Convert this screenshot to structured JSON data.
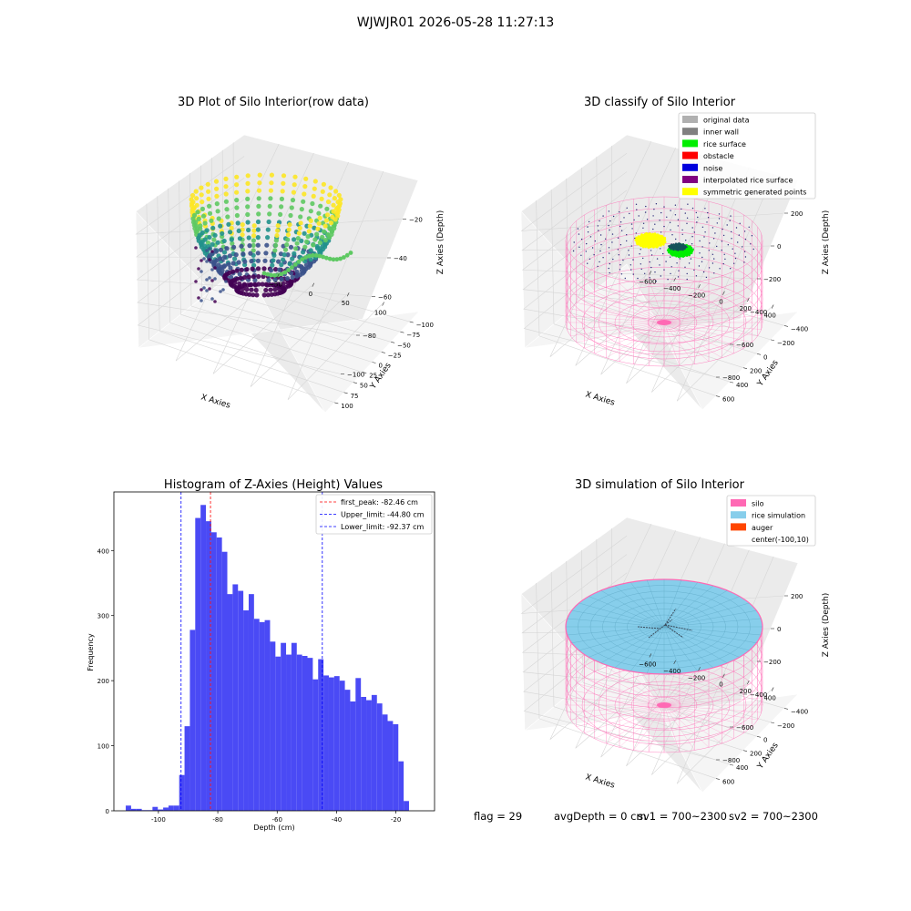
{
  "suptitle": "WJWJR01 2026-05-28 11:27:13",
  "footer": {
    "flag": "flag = 29",
    "avg_depth": "avgDepth = 0 cm",
    "sv1": "sv1 = 700~2300",
    "sv2": "sv2 = 700~2300"
  },
  "chart_data": [
    {
      "type": "scatter",
      "title": "3D Plot of Silo Interior(row data)",
      "xlabel": "X Axies",
      "ylabel": "Y Axies",
      "zlabel": "Z Axies (Depth)",
      "x_ticks": [
        "−50",
        "0",
        "50",
        "100"
      ],
      "y_ticks": [
        "−100",
        "−75",
        "−50",
        "−25",
        "0",
        "25",
        "50",
        "75",
        "100"
      ],
      "z_ticks": [
        "−100",
        "−80",
        "−60",
        "−40",
        "−20"
      ],
      "colormap": [
        "#440154",
        "#3b528b",
        "#21918c",
        "#5ec962",
        "#fde725"
      ]
    },
    {
      "type": "scatter",
      "title": "3D classify of Silo Interior",
      "xlabel": "X Axies",
      "ylabel": "Y Axies",
      "zlabel": "Z Axies (Depth)",
      "x_ticks": [
        "−600",
        "−400",
        "−200",
        "0",
        "200",
        "400"
      ],
      "y_ticks": [
        "−400",
        "−200",
        "0",
        "200",
        "400",
        "600"
      ],
      "z_ticks": [
        "−800",
        "−600",
        "−400",
        "−200",
        "0",
        "200"
      ],
      "legend": [
        {
          "label": "original data",
          "color": "#b0b0b0"
        },
        {
          "label": "inner wall",
          "color": "#808080"
        },
        {
          "label": "rice surface",
          "color": "#00ee00"
        },
        {
          "label": "obstacle",
          "color": "#ff0000"
        },
        {
          "label": "noise",
          "color": "#0000dd"
        },
        {
          "label": "interpolated rice surface",
          "color": "#800080"
        },
        {
          "label": "symmetric generated points",
          "color": "#ffff00"
        }
      ],
      "wire_color": "#ff69b4"
    },
    {
      "type": "bar",
      "title": "Histogram of Z-Axies (Height) Values",
      "xlabel": "Depth (cm)",
      "ylabel": "Frequency",
      "xlim": [
        -115,
        -7
      ],
      "ylim": [
        0,
        490
      ],
      "x_ticks": [
        -100,
        -80,
        -60,
        -40,
        -20
      ],
      "y_ticks": [
        0,
        100,
        200,
        300,
        400
      ],
      "bin_start": -111,
      "bin_width": 1.8,
      "values": [
        8,
        3,
        3,
        1,
        1,
        6,
        2,
        5,
        8,
        8,
        55,
        130,
        278,
        450,
        470,
        445,
        428,
        420,
        398,
        333,
        348,
        338,
        308,
        333,
        295,
        290,
        293,
        260,
        237,
        258,
        240,
        258,
        240,
        238,
        235,
        202,
        233,
        208,
        205,
        207,
        200,
        186,
        168,
        204,
        175,
        170,
        178,
        165,
        148,
        138,
        133,
        76,
        15
      ],
      "bar_color": "#4a4af5",
      "vlines": [
        {
          "label": "first_peak: -82.46 cm",
          "x": -82.46,
          "color": "#ff0000"
        },
        {
          "label": "Upper_limit: -44.80 cm",
          "x": -44.8,
          "color": "#0000ff"
        },
        {
          "label": "Lower_limit: -92.37 cm",
          "x": -92.37,
          "color": "#0000ff"
        }
      ]
    },
    {
      "type": "scatter",
      "title": "3D simulation of Silo Interior",
      "xlabel": "X Axies",
      "ylabel": "Y Axies",
      "zlabel": "Z Axies (Depth)",
      "x_ticks": [
        "−600",
        "−400",
        "−200",
        "0",
        "200",
        "400"
      ],
      "y_ticks": [
        "−400",
        "−200",
        "0",
        "200",
        "400",
        "600"
      ],
      "z_ticks": [
        "−800",
        "−600",
        "−400",
        "−200",
        "0",
        "200"
      ],
      "legend": [
        {
          "label": "silo",
          "color": "#ff69b4"
        },
        {
          "label": "rice simulation",
          "color": "#87ceeb"
        },
        {
          "label": "auger",
          "color": "#ff4500"
        },
        {
          "label": "center(-100,10)",
          "color": ""
        }
      ]
    }
  ]
}
